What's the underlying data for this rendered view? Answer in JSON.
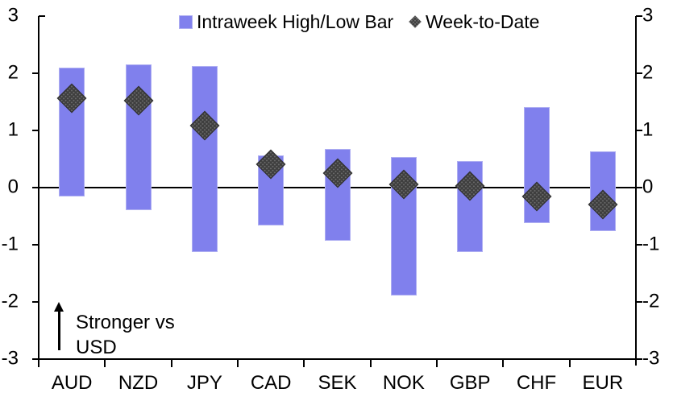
{
  "chart_data": {
    "type": "bar",
    "subtype": "floating-range-bars-with-diamond-markers",
    "title": "",
    "categories": [
      "AUD",
      "NZD",
      "JPY",
      "CAD",
      "SEK",
      "NOK",
      "GBP",
      "CHF",
      "EUR"
    ],
    "series": [
      {
        "name": "Intraweek High/Low Bar",
        "type": "range-bar",
        "high": [
          2.1,
          2.15,
          2.12,
          0.56,
          0.67,
          0.53,
          0.47,
          1.41,
          0.63
        ],
        "low": [
          -0.15,
          -0.4,
          -1.12,
          -0.66,
          -0.93,
          -1.89,
          -1.13,
          -0.62,
          -0.76
        ]
      },
      {
        "name": "Week-to-Date",
        "type": "scatter-diamond",
        "values": [
          1.57,
          1.52,
          1.08,
          0.41,
          0.26,
          0.05,
          0.03,
          -0.15,
          -0.29
        ]
      }
    ],
    "xlabel": "",
    "ylabel": "",
    "ylim": [
      -3,
      3
    ],
    "yticks": [
      3,
      2,
      1,
      0,
      -1,
      -2,
      -3
    ],
    "yaxis_sides": [
      "left",
      "right"
    ],
    "gridlines": "none",
    "zero_line": true,
    "legend_position": "top-center",
    "annotation": {
      "line1": "Stronger vs",
      "line2": "USD",
      "symbol": "up-arrow"
    },
    "colors": {
      "bar_fill": "#8080ED",
      "bar_edge": "#AFAFF2",
      "marker_fill": "#3E3E3E",
      "marker_dot": "#6F6F6F",
      "marker_edge": "#303030",
      "axis": "#000000",
      "text": "#000000",
      "background": "#FFFFFF"
    }
  }
}
